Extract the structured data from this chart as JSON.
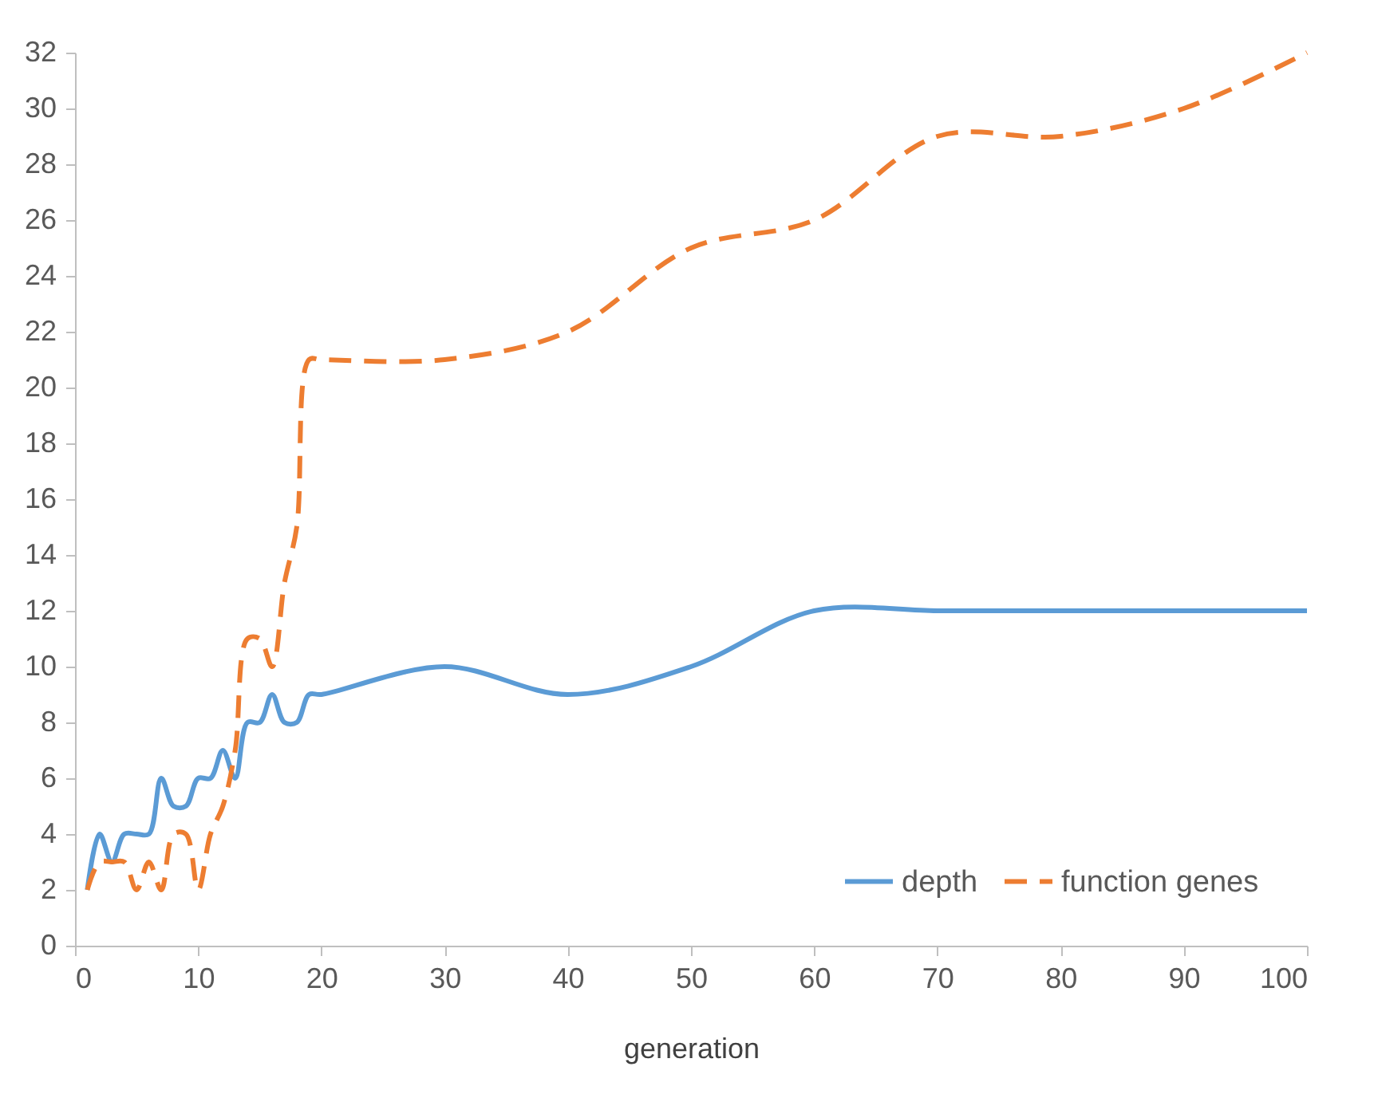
{
  "chart_data": {
    "type": "line",
    "xlabel": "generation",
    "x": [
      1,
      2,
      3,
      4,
      5,
      6,
      7,
      8,
      9,
      10,
      11,
      12,
      13,
      14,
      15,
      16,
      17,
      18,
      19,
      20,
      30,
      40,
      50,
      60,
      70,
      80,
      90,
      100
    ],
    "series": [
      {
        "name": "depth",
        "color": "#5b9bd5",
        "line_style": "solid",
        "values": [
          2,
          4,
          3,
          4,
          4,
          4,
          6,
          5,
          5,
          6,
          6,
          7,
          6,
          8,
          8,
          9,
          8,
          8,
          9,
          9,
          10,
          9,
          10,
          12,
          12,
          12,
          12,
          12
        ]
      },
      {
        "name": "function genes",
        "color": "#ed7d31",
        "line_style": "dashed",
        "values": [
          2,
          3,
          3,
          3,
          2,
          3,
          2,
          4,
          4,
          2,
          4,
          5,
          7,
          11,
          11,
          10,
          13,
          15,
          21,
          21,
          21,
          22,
          25,
          26,
          29,
          29,
          30,
          32
        ]
      }
    ],
    "xlim": [
      0,
      100
    ],
    "xticks": [
      0,
      10,
      20,
      30,
      40,
      50,
      60,
      70,
      80,
      90,
      100
    ],
    "ylim": [
      0,
      32
    ],
    "yticks": [
      0,
      2,
      4,
      6,
      8,
      10,
      12,
      14,
      16,
      18,
      20,
      22,
      24,
      26,
      28,
      30,
      32
    ],
    "grid": false,
    "legend": "bottom right",
    "marker": "none"
  }
}
